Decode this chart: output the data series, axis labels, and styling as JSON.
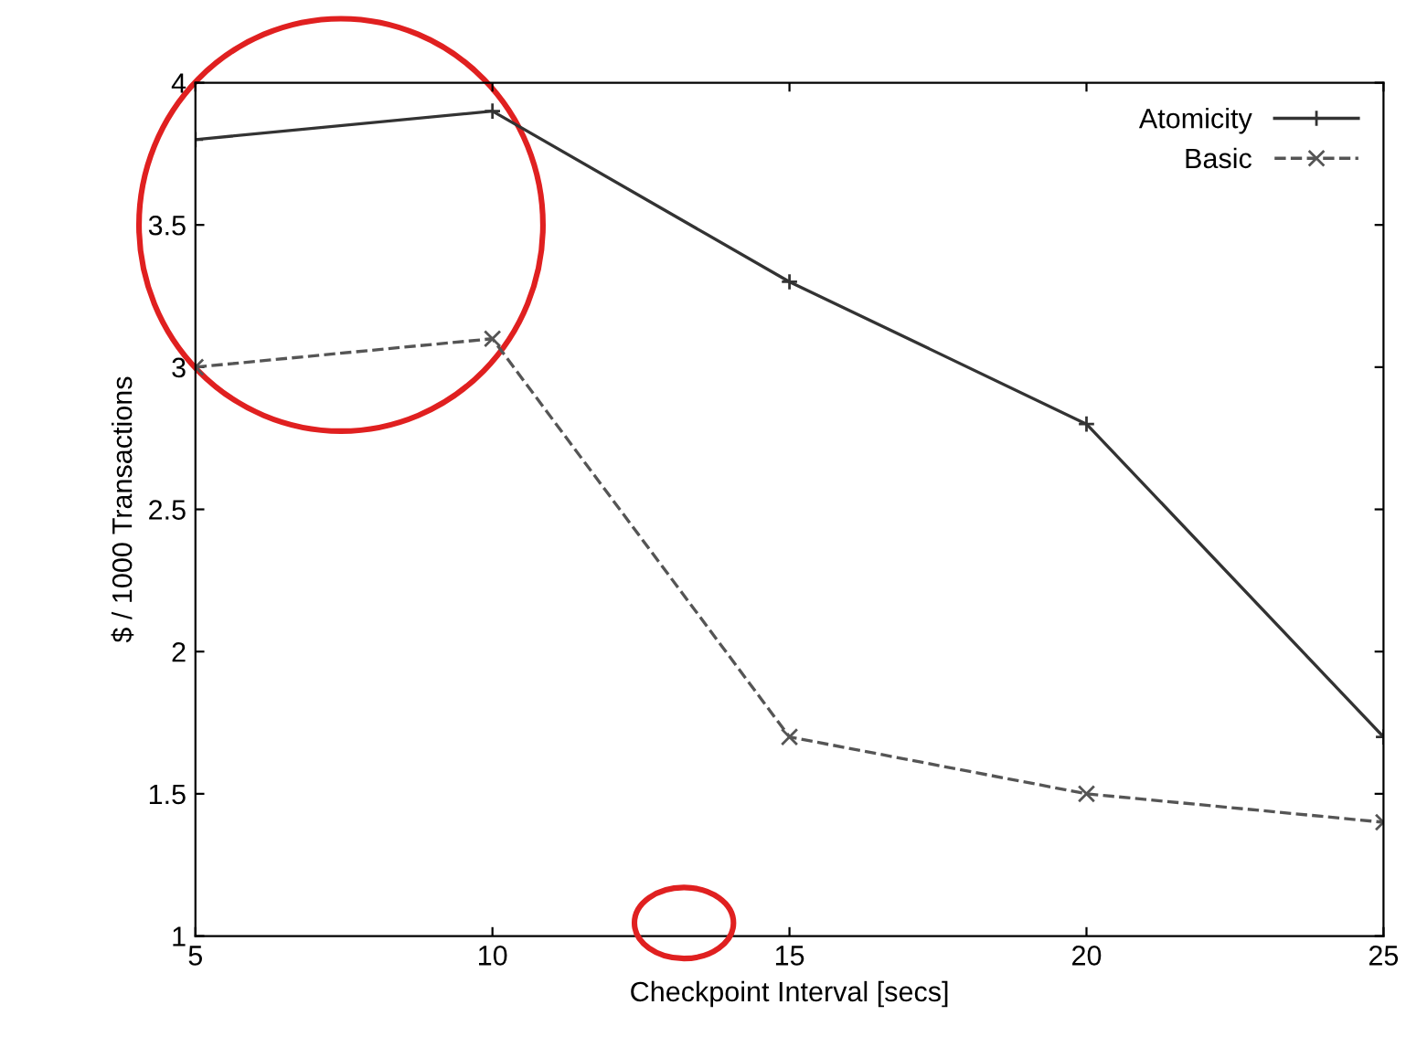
{
  "chart_data": {
    "type": "line",
    "xlabel": "Checkpoint Interval [secs]",
    "ylabel": "$ / 1000 Transactions",
    "x": [
      5,
      10,
      15,
      20,
      25
    ],
    "series": [
      {
        "name": "Atomicity",
        "color": "#333333",
        "values": [
          3.8,
          3.9,
          3.3,
          2.8,
          1.7
        ],
        "marker": "plus",
        "line_style": "solid"
      },
      {
        "name": "Basic",
        "color": "#555555",
        "values": [
          3.0,
          3.1,
          1.7,
          1.5,
          1.4
        ],
        "marker": "cross",
        "line_style": "dashed"
      }
    ],
    "xlim": [
      5,
      25
    ],
    "xticks": [
      5,
      10,
      15,
      20,
      25
    ],
    "ylim": [
      1,
      4
    ],
    "yticks": [
      1,
      1.5,
      2,
      2.5,
      3,
      3.5,
      4
    ],
    "grid": false,
    "legend": "top right"
  }
}
